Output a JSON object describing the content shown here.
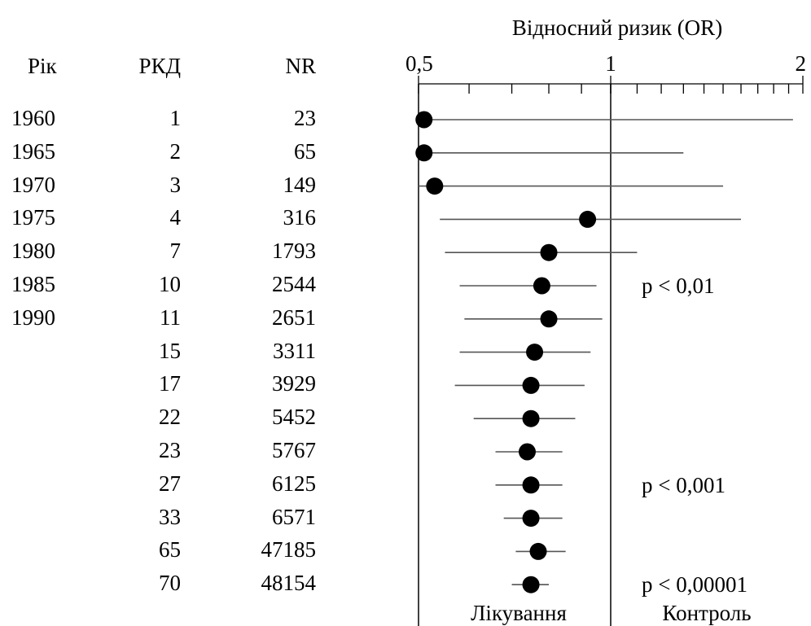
{
  "chart_data": {
    "type": "forest",
    "title": "Відносний ризик (OR)",
    "x_scale": "log",
    "xlim": [
      0.5,
      2
    ],
    "x_ticks_labeled": [
      "0,5",
      "1",
      "2"
    ],
    "x_tick_values": [
      0.5,
      1,
      2
    ],
    "reference_line": 1,
    "columns": {
      "year": "Рік",
      "rct": "РКД",
      "nr": "NR"
    },
    "rows": [
      {
        "year": "1960",
        "rct": "1",
        "nr": "23",
        "or": 0.51,
        "lo": 0.5,
        "hi": 1.93
      },
      {
        "year": "1965",
        "rct": "2",
        "nr": "65",
        "or": 0.51,
        "lo": 0.5,
        "hi": 1.3
      },
      {
        "year": "1970",
        "rct": "3",
        "nr": "149",
        "or": 0.53,
        "lo": 0.5,
        "hi": 1.5
      },
      {
        "year": "1975",
        "rct": "4",
        "nr": "316",
        "or": 0.92,
        "lo": 0.54,
        "hi": 1.6
      },
      {
        "year": "1980",
        "rct": "7",
        "nr": "1793",
        "or": 0.8,
        "lo": 0.55,
        "hi": 1.1
      },
      {
        "year": "1985",
        "rct": "10",
        "nr": "2544",
        "or": 0.78,
        "lo": 0.58,
        "hi": 0.95
      },
      {
        "year": "1990",
        "rct": "11",
        "nr": "2651",
        "or": 0.8,
        "lo": 0.59,
        "hi": 0.97
      },
      {
        "year": "",
        "rct": "15",
        "nr": "3311",
        "or": 0.76,
        "lo": 0.58,
        "hi": 0.93
      },
      {
        "year": "",
        "rct": "17",
        "nr": "3929",
        "or": 0.75,
        "lo": 0.57,
        "hi": 0.91
      },
      {
        "year": "",
        "rct": "22",
        "nr": "5452",
        "or": 0.75,
        "lo": 0.61,
        "hi": 0.88
      },
      {
        "year": "",
        "rct": "23",
        "nr": "5767",
        "or": 0.74,
        "lo": 0.66,
        "hi": 0.84
      },
      {
        "year": "",
        "rct": "27",
        "nr": "6125",
        "or": 0.75,
        "lo": 0.66,
        "hi": 0.84
      },
      {
        "year": "",
        "rct": "33",
        "nr": "6571",
        "or": 0.75,
        "lo": 0.68,
        "hi": 0.84
      },
      {
        "year": "",
        "rct": "65",
        "nr": "47185",
        "or": 0.77,
        "lo": 0.71,
        "hi": 0.85
      },
      {
        "year": "",
        "rct": "70",
        "nr": "48154",
        "or": 0.75,
        "lo": 0.7,
        "hi": 0.8
      }
    ],
    "annotations": [
      {
        "text": "p < 0,01",
        "row": 5
      },
      {
        "text": "p < 0,001",
        "row": 11
      },
      {
        "text": "p < 0,00001",
        "row": 14
      }
    ],
    "bottom_labels": {
      "left": "Лікування",
      "right": "Контроль"
    },
    "colors": {
      "ink": "#000000",
      "ci_line": "#555555"
    }
  }
}
